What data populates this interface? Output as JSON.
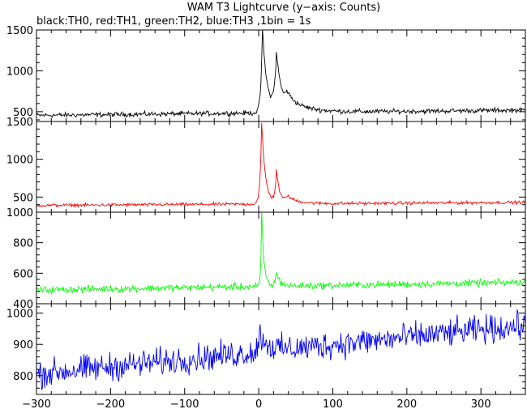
{
  "title": "WAM T3 Lightcurve (y−axis: Counts)",
  "subtitle": "black:TH0, red:TH1, green:TH2, blue:TH3 ,1bin = 1s",
  "chart_data": [
    {
      "type": "line",
      "series": [
        {
          "name": "TH0",
          "color": "#000000"
        }
      ],
      "x_range": [
        -300,
        360
      ],
      "ylim": [
        380,
        1500
      ],
      "yticks": [
        500,
        1000,
        1500
      ],
      "baseline": {
        "start": 455,
        "end": 520,
        "noise": 25
      },
      "peaks": [
        {
          "x": 5,
          "height": 1030,
          "rise": 2,
          "decay": 6
        },
        {
          "x": 24,
          "height": 700,
          "rise": 3,
          "decay": 7
        },
        {
          "x": 38,
          "height": 180,
          "rise": 4,
          "decay": 25
        }
      ],
      "key_points": [
        {
          "x": 5,
          "y": 1500
        },
        {
          "x": 24,
          "y": 1200
        }
      ]
    },
    {
      "type": "line",
      "series": [
        {
          "name": "TH1",
          "color": "#ff0000"
        }
      ],
      "x_range": [
        -300,
        360
      ],
      "ylim": [
        300,
        1500
      ],
      "yticks": [
        500,
        1000,
        1500
      ],
      "baseline": {
        "start": 390,
        "end": 430,
        "noise": 18
      },
      "peaks": [
        {
          "x": 4,
          "height": 1060,
          "rise": 2,
          "decay": 5
        },
        {
          "x": 24,
          "height": 440,
          "rise": 2,
          "decay": 4
        },
        {
          "x": 38,
          "height": 100,
          "rise": 4,
          "decay": 15
        }
      ],
      "key_points": [
        {
          "x": 4,
          "y": 1450
        },
        {
          "x": 24,
          "y": 850
        }
      ]
    },
    {
      "type": "line",
      "series": [
        {
          "name": "TH2",
          "color": "#00ff00"
        }
      ],
      "x_range": [
        -300,
        360
      ],
      "ylim": [
        400,
        1000
      ],
      "yticks": [
        400,
        600,
        800,
        1000
      ],
      "baseline": {
        "start": 490,
        "end": 540,
        "noise": 20
      },
      "peaks": [
        {
          "x": 4,
          "height": 480,
          "rise": 1,
          "decay": 3
        },
        {
          "x": 24,
          "height": 90,
          "rise": 2,
          "decay": 5
        }
      ],
      "key_points": [
        {
          "x": 4,
          "y": 980
        }
      ]
    },
    {
      "type": "line",
      "series": [
        {
          "name": "TH3",
          "color": "#0000ff"
        }
      ],
      "x_range": [
        -300,
        360
      ],
      "ylim": [
        740,
        1030
      ],
      "yticks": [
        800,
        900,
        1000
      ],
      "baseline": {
        "start": 805,
        "end": 960,
        "noise": 38
      },
      "peaks": [
        {
          "x": 2,
          "height": 60,
          "rise": 3,
          "decay": 10
        }
      ],
      "key_points": [
        {
          "x": -300,
          "y": 805
        },
        {
          "x": 360,
          "y": 960
        }
      ]
    }
  ],
  "x_axis": {
    "ticks": [
      -300,
      -200,
      -100,
      0,
      100,
      200,
      300
    ]
  }
}
